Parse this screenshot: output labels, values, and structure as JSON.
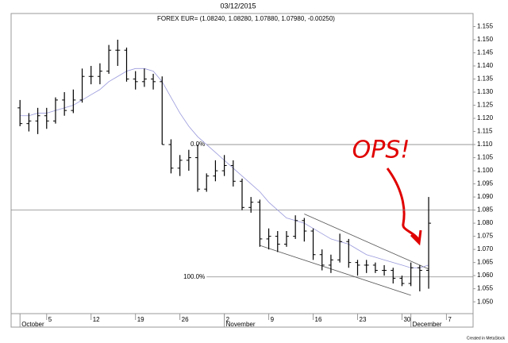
{
  "chart_data": {
    "type": "ohlc",
    "title": "03/12/2015",
    "subtitle": "FOREX EUR= (1.08240, 1.08280, 1.07880, 1.07980, -0.00250)",
    "footer": "Created in MetaStock",
    "color": "#000000",
    "x": [
      "2015-09-30",
      "2015-10-01",
      "2015-10-02",
      "2015-10-05",
      "2015-10-06",
      "2015-10-07",
      "2015-10-08",
      "2015-10-09",
      "2015-10-12",
      "2015-10-13",
      "2015-10-14",
      "2015-10-15",
      "2015-10-16",
      "2015-10-19",
      "2015-10-20",
      "2015-10-21",
      "2015-10-22",
      "2015-10-23",
      "2015-10-26",
      "2015-10-27",
      "2015-10-28",
      "2015-10-29",
      "2015-10-30",
      "2015-11-02",
      "2015-11-03",
      "2015-11-04",
      "2015-11-05",
      "2015-11-06",
      "2015-11-09",
      "2015-11-10",
      "2015-11-11",
      "2015-11-12",
      "2015-11-13",
      "2015-11-16",
      "2015-11-17",
      "2015-11-18",
      "2015-11-19",
      "2015-11-20",
      "2015-11-23",
      "2015-11-24",
      "2015-11-25",
      "2015-11-26",
      "2015-11-27",
      "2015-11-30",
      "2015-12-01",
      "2015-12-02",
      "2015-12-03"
    ],
    "open": [
      1.124,
      1.118,
      1.119,
      1.121,
      1.119,
      1.127,
      1.123,
      1.127,
      1.136,
      1.136,
      1.138,
      1.146,
      1.146,
      1.135,
      1.134,
      1.135,
      1.134,
      1.11,
      1.101,
      1.104,
      1.105,
      1.093,
      1.098,
      1.1,
      1.102,
      1.096,
      1.086,
      1.088,
      1.074,
      1.075,
      1.072,
      1.075,
      1.081,
      1.077,
      1.068,
      1.064,
      1.066,
      1.073,
      1.065,
      1.064,
      1.064,
      1.062,
      1.062,
      1.059,
      1.057,
      1.063,
      1.062
    ],
    "high": [
      1.127,
      1.122,
      1.124,
      1.124,
      1.128,
      1.13,
      1.131,
      1.139,
      1.14,
      1.141,
      1.148,
      1.15,
      1.147,
      1.138,
      1.139,
      1.137,
      1.136,
      1.112,
      1.106,
      1.108,
      1.11,
      1.099,
      1.104,
      1.106,
      1.104,
      1.097,
      1.09,
      1.089,
      1.078,
      1.077,
      1.077,
      1.083,
      1.082,
      1.078,
      1.07,
      1.068,
      1.076,
      1.074,
      1.066,
      1.066,
      1.065,
      1.064,
      1.063,
      1.06,
      1.065,
      1.064,
      1.09
    ],
    "low": [
      1.117,
      1.115,
      1.114,
      1.116,
      1.118,
      1.121,
      1.122,
      1.126,
      1.133,
      1.133,
      1.137,
      1.14,
      1.134,
      1.131,
      1.132,
      1.131,
      1.11,
      1.099,
      1.098,
      1.1,
      1.092,
      1.092,
      1.096,
      1.098,
      1.094,
      1.085,
      1.084,
      1.071,
      1.07,
      1.069,
      1.071,
      1.074,
      1.073,
      1.066,
      1.062,
      1.061,
      1.065,
      1.063,
      1.06,
      1.061,
      1.061,
      1.06,
      1.057,
      1.056,
      1.056,
      1.054,
      1.055
    ],
    "close": [
      1.118,
      1.119,
      1.121,
      1.119,
      1.127,
      1.123,
      1.127,
      1.136,
      1.136,
      1.138,
      1.146,
      1.146,
      1.135,
      1.134,
      1.135,
      1.134,
      1.11,
      1.101,
      1.104,
      1.105,
      1.093,
      1.098,
      1.1,
      1.102,
      1.096,
      1.086,
      1.088,
      1.074,
      1.075,
      1.072,
      1.075,
      1.081,
      1.077,
      1.068,
      1.064,
      1.066,
      1.073,
      1.065,
      1.064,
      1.064,
      1.062,
      1.062,
      1.059,
      1.057,
      1.063,
      1.062,
      1.08
    ],
    "ma": {
      "color": "#9999dd",
      "values": [
        1.121,
        1.121,
        1.122,
        1.122,
        1.123,
        1.124,
        1.125,
        1.127,
        1.129,
        1.131,
        1.134,
        1.136,
        1.138,
        1.139,
        1.139,
        1.138,
        1.134,
        1.128,
        1.122,
        1.117,
        1.113,
        1.11,
        1.107,
        1.104,
        1.101,
        1.098,
        1.095,
        1.092,
        1.088,
        1.085,
        1.082,
        1.081,
        1.08,
        1.078,
        1.076,
        1.074,
        1.073,
        1.072,
        1.07,
        1.068,
        1.067,
        1.066,
        1.065,
        1.064,
        1.063,
        1.063,
        1.064
      ]
    },
    "xlim": [
      "2015-09-29",
      "2015-12-10"
    ],
    "xticks": [
      {
        "value": "2015-10-05",
        "label": "5"
      },
      {
        "value": "2015-10-12",
        "label": "12"
      },
      {
        "value": "2015-10-19",
        "label": "19"
      },
      {
        "value": "2015-10-26",
        "label": "26"
      },
      {
        "value": "2015-11-02",
        "label": "2"
      },
      {
        "value": "2015-11-09",
        "label": "9"
      },
      {
        "value": "2015-11-16",
        "label": "16"
      },
      {
        "value": "2015-11-23",
        "label": "23"
      },
      {
        "value": "2015-11-30",
        "label": "30"
      },
      {
        "value": "2015-12-07",
        "label": "7"
      }
    ],
    "months": [
      {
        "value": "2015-09-30",
        "label": "October"
      },
      {
        "value": "2015-11-02",
        "label": "November"
      },
      {
        "value": "2015-12-01",
        "label": "December"
      }
    ],
    "ylim": [
      1.0455,
      1.16
    ],
    "yticks": [
      {
        "value": 1.05,
        "label": "1.050"
      },
      1.055,
      {
        "value": 1.06,
        "label": "1.060"
      },
      1.065,
      {
        "value": 1.07,
        "label": "1.070"
      },
      1.075,
      {
        "value": 1.08,
        "label": "1.080"
      },
      1.085,
      {
        "value": 1.09,
        "label": "1.090"
      },
      1.095,
      {
        "value": 1.1,
        "label": "1.100"
      },
      1.105,
      {
        "value": 1.11,
        "label": "1.110"
      },
      1.115,
      {
        "value": 1.12,
        "label": "1.120"
      },
      1.125,
      {
        "value": 1.13,
        "label": "1.130"
      },
      1.135,
      {
        "value": 1.14,
        "label": "1.140"
      },
      1.145,
      {
        "value": 1.15,
        "label": "1.150"
      },
      1.155
    ],
    "hlines": [
      {
        "value": 1.11,
        "from": "2015-10-29",
        "label": "0.0%"
      },
      {
        "value": 1.085
      },
      {
        "value": 1.0595,
        "from": "2015-10-29",
        "label": "100.0%"
      }
    ],
    "trendlines": [
      {
        "x": [
          "2015-11-13",
          "2015-12-03"
        ],
        "y": [
          1.0835,
          1.0625
        ]
      },
      {
        "x": [
          "2015-11-06",
          "2015-12-01"
        ],
        "y": [
          1.0715,
          1.0525
        ]
      }
    ],
    "annotation": {
      "text": "OPS!",
      "color": "#e00000"
    }
  }
}
